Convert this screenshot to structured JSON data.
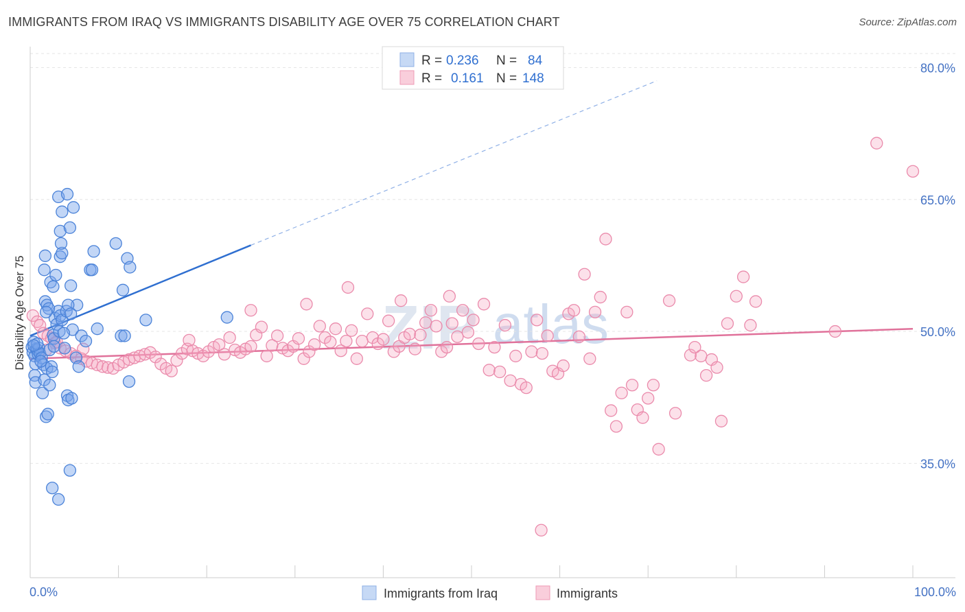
{
  "title": "IMMIGRANTS FROM IRAQ VS IMMIGRANTS DISABILITY AGE OVER 75 CORRELATION CHART",
  "source": "Source: ZipAtlas.com",
  "watermark": {
    "part1": "ZIP",
    "part2": "atlas"
  },
  "legend": {
    "r_label": "R =",
    "n_label": "N =",
    "rows": [
      {
        "r": "0.236",
        "n": "84"
      },
      {
        "r": "0.161",
        "n": "148"
      }
    ]
  },
  "bottom_legend": [
    "Immigrants from Iraq",
    "Immigrants"
  ],
  "chart_data": {
    "type": "scatter",
    "title": "IMMIGRANTS FROM IRAQ VS IMMIGRANTS DISABILITY AGE OVER 75 CORRELATION CHART",
    "xlabel": "",
    "ylabel": "Disability Age Over 75",
    "xlim": [
      0,
      100
    ],
    "ylim": [
      22,
      83
    ],
    "x_tick_labels": [
      "0.0%",
      "100.0%"
    ],
    "y_ticks": [
      35,
      50,
      65,
      80
    ],
    "y_tick_labels": [
      "35.0%",
      "50.0%",
      "65.0%",
      "80.0%"
    ],
    "grid": true,
    "legend_position": "top-center",
    "colors": {
      "iraq": "#5b8fe0",
      "immigrants": "#ee8fae",
      "iraq_line": "#2f6fd0",
      "immigrants_line": "#e0719a"
    },
    "series": [
      {
        "name": "Immigrants from Iraq",
        "r": 0.236,
        "n": 84,
        "trend": {
          "x": [
            0,
            25
          ],
          "y": [
            49.5,
            59.8
          ],
          "dashed_to": [
            71,
            78.5
          ]
        },
        "points": [
          [
            0.2,
            48.2
          ],
          [
            0.3,
            47.6
          ],
          [
            0.4,
            48.8
          ],
          [
            0.5,
            47.2
          ],
          [
            0.6,
            46.3
          ],
          [
            0.7,
            48.0
          ],
          [
            0.8,
            47.9
          ],
          [
            0.9,
            47.4
          ],
          [
            1.0,
            48.1
          ],
          [
            0.5,
            45.0
          ],
          [
            0.6,
            44.2
          ],
          [
            1.1,
            47.5
          ],
          [
            1.3,
            47.0
          ],
          [
            1.5,
            46.2
          ],
          [
            1.4,
            43.0
          ],
          [
            1.6,
            44.5
          ],
          [
            1.8,
            40.3
          ],
          [
            2.0,
            40.6
          ],
          [
            1.9,
            45.8
          ],
          [
            2.2,
            43.9
          ],
          [
            2.4,
            46.0
          ],
          [
            2.5,
            45.4
          ],
          [
            2.6,
            49.6
          ],
          [
            2.7,
            49.2
          ],
          [
            2.8,
            51.5
          ],
          [
            3.0,
            50.8
          ],
          [
            3.2,
            52.3
          ],
          [
            3.4,
            51.8
          ],
          [
            3.6,
            51.3
          ],
          [
            3.3,
            50.0
          ],
          [
            1.7,
            53.4
          ],
          [
            1.9,
            53.0
          ],
          [
            2.1,
            52.6
          ],
          [
            1.8,
            52.2
          ],
          [
            2.3,
            55.6
          ],
          [
            2.6,
            55.1
          ],
          [
            2.9,
            56.4
          ],
          [
            1.6,
            57.0
          ],
          [
            1.7,
            58.6
          ],
          [
            3.4,
            58.5
          ],
          [
            3.6,
            58.9
          ],
          [
            3.5,
            60.0
          ],
          [
            3.4,
            61.4
          ],
          [
            3.6,
            63.6
          ],
          [
            3.2,
            65.3
          ],
          [
            4.2,
            65.6
          ],
          [
            4.9,
            64.1
          ],
          [
            4.5,
            61.8
          ],
          [
            4.6,
            55.2
          ],
          [
            5.3,
            53.0
          ],
          [
            4.1,
            52.3
          ],
          [
            4.3,
            53.0
          ],
          [
            4.6,
            52.0
          ],
          [
            4.8,
            50.2
          ],
          [
            5.8,
            49.5
          ],
          [
            5.2,
            47.0
          ],
          [
            5.5,
            46.0
          ],
          [
            4.2,
            42.7
          ],
          [
            4.3,
            42.2
          ],
          [
            4.7,
            42.4
          ],
          [
            4.5,
            34.2
          ],
          [
            2.5,
            32.2
          ],
          [
            3.2,
            30.9
          ],
          [
            6.8,
            57.0
          ],
          [
            7.0,
            57.0
          ],
          [
            7.2,
            59.1
          ],
          [
            9.7,
            60.0
          ],
          [
            11.0,
            58.3
          ],
          [
            11.3,
            57.3
          ],
          [
            10.5,
            54.7
          ],
          [
            10.3,
            49.5
          ],
          [
            10.7,
            49.5
          ],
          [
            11.2,
            44.3
          ],
          [
            13.1,
            51.3
          ],
          [
            22.3,
            51.6
          ],
          [
            3.8,
            49.8
          ],
          [
            2.2,
            47.9
          ],
          [
            1.2,
            46.6
          ],
          [
            0.8,
            48.6
          ],
          [
            0.4,
            48.4
          ],
          [
            6.3,
            48.9
          ],
          [
            7.6,
            50.3
          ],
          [
            2.7,
            48.3
          ],
          [
            3.9,
            48.1
          ]
        ]
      },
      {
        "name": "Immigrants",
        "r": 0.161,
        "n": 148,
        "trend": {
          "x": [
            0,
            100
          ],
          "y": [
            46.9,
            50.3
          ]
        },
        "points": [
          [
            0.3,
            51.8
          ],
          [
            0.8,
            51.1
          ],
          [
            1.1,
            50.7
          ],
          [
            1.5,
            49.8
          ],
          [
            2.0,
            49.5
          ],
          [
            2.4,
            49.2
          ],
          [
            2.8,
            48.7
          ],
          [
            3.4,
            48.1
          ],
          [
            4.0,
            47.8
          ],
          [
            4.6,
            47.5
          ],
          [
            5.2,
            47.2
          ],
          [
            5.8,
            46.9
          ],
          [
            6.4,
            46.6
          ],
          [
            7.0,
            46.4
          ],
          [
            7.6,
            46.2
          ],
          [
            8.2,
            46.0
          ],
          [
            8.8,
            45.9
          ],
          [
            9.4,
            45.8
          ],
          [
            10.0,
            46.2
          ],
          [
            10.6,
            46.5
          ],
          [
            11.2,
            46.8
          ],
          [
            11.8,
            47.0
          ],
          [
            12.4,
            47.2
          ],
          [
            13.0,
            47.4
          ],
          [
            13.6,
            47.6
          ],
          [
            14.2,
            47.1
          ],
          [
            14.8,
            46.3
          ],
          [
            15.4,
            45.8
          ],
          [
            16.0,
            45.5
          ],
          [
            16.6,
            46.7
          ],
          [
            17.2,
            47.5
          ],
          [
            17.8,
            48.0
          ],
          [
            18.4,
            47.8
          ],
          [
            19.0,
            47.5
          ],
          [
            19.6,
            47.2
          ],
          [
            20.2,
            47.7
          ],
          [
            20.8,
            48.2
          ],
          [
            21.4,
            48.5
          ],
          [
            22.0,
            47.4
          ],
          [
            22.6,
            49.3
          ],
          [
            23.2,
            47.9
          ],
          [
            23.8,
            47.6
          ],
          [
            24.4,
            48.0
          ],
          [
            25.0,
            48.3
          ],
          [
            25.6,
            49.6
          ],
          [
            26.2,
            50.5
          ],
          [
            26.8,
            47.2
          ],
          [
            27.4,
            48.4
          ],
          [
            28.0,
            49.5
          ],
          [
            28.6,
            48.1
          ],
          [
            29.2,
            47.8
          ],
          [
            29.8,
            48.3
          ],
          [
            30.4,
            49.2
          ],
          [
            31.0,
            46.9
          ],
          [
            31.6,
            47.7
          ],
          [
            32.2,
            48.5
          ],
          [
            32.8,
            50.6
          ],
          [
            33.4,
            49.3
          ],
          [
            34.0,
            48.8
          ],
          [
            34.6,
            50.3
          ],
          [
            35.2,
            47.8
          ],
          [
            35.8,
            48.9
          ],
          [
            36.4,
            50.1
          ],
          [
            37.0,
            46.9
          ],
          [
            37.6,
            48.9
          ],
          [
            38.2,
            52.0
          ],
          [
            38.8,
            49.3
          ],
          [
            39.4,
            48.6
          ],
          [
            40.0,
            49.1
          ],
          [
            40.6,
            51.2
          ],
          [
            41.2,
            47.7
          ],
          [
            41.8,
            48.3
          ],
          [
            42.4,
            49.3
          ],
          [
            43.0,
            49.7
          ],
          [
            43.6,
            48.0
          ],
          [
            44.2,
            49.6
          ],
          [
            44.8,
            51.0
          ],
          [
            45.4,
            52.4
          ],
          [
            46.0,
            50.6
          ],
          [
            46.6,
            47.7
          ],
          [
            47.2,
            48.2
          ],
          [
            47.8,
            50.9
          ],
          [
            48.4,
            49.4
          ],
          [
            49.0,
            52.4
          ],
          [
            49.6,
            49.9
          ],
          [
            50.2,
            51.3
          ],
          [
            50.8,
            48.6
          ],
          [
            51.4,
            53.1
          ],
          [
            52.0,
            45.6
          ],
          [
            52.6,
            48.2
          ],
          [
            53.2,
            45.4
          ],
          [
            53.8,
            50.7
          ],
          [
            54.4,
            44.4
          ],
          [
            55.0,
            47.2
          ],
          [
            55.6,
            44.0
          ],
          [
            56.2,
            43.6
          ],
          [
            56.8,
            47.7
          ],
          [
            57.4,
            51.3
          ],
          [
            58.0,
            47.5
          ],
          [
            58.6,
            49.5
          ],
          [
            59.2,
            45.5
          ],
          [
            59.8,
            45.2
          ],
          [
            60.4,
            46.1
          ],
          [
            61.0,
            52.0
          ],
          [
            61.6,
            52.4
          ],
          [
            62.2,
            49.4
          ],
          [
            62.8,
            56.5
          ],
          [
            63.4,
            46.9
          ],
          [
            64.0,
            52.2
          ],
          [
            64.6,
            53.9
          ],
          [
            65.2,
            60.5
          ],
          [
            65.8,
            41.0
          ],
          [
            66.4,
            39.2
          ],
          [
            67.0,
            43.0
          ],
          [
            67.6,
            52.2
          ],
          [
            68.2,
            43.9
          ],
          [
            68.8,
            41.1
          ],
          [
            69.4,
            40.2
          ],
          [
            70.0,
            42.4
          ],
          [
            70.6,
            43.9
          ],
          [
            71.2,
            36.6
          ],
          [
            72.4,
            53.5
          ],
          [
            73.1,
            40.7
          ],
          [
            74.8,
            47.3
          ],
          [
            75.3,
            48.2
          ],
          [
            76.0,
            47.2
          ],
          [
            76.6,
            45.0
          ],
          [
            77.2,
            46.8
          ],
          [
            77.8,
            45.9
          ],
          [
            78.3,
            39.8
          ],
          [
            79.0,
            50.9
          ],
          [
            80.0,
            54.0
          ],
          [
            80.8,
            56.2
          ],
          [
            81.6,
            50.7
          ],
          [
            82.2,
            53.4
          ],
          [
            91.2,
            50.0
          ],
          [
            95.9,
            71.4
          ],
          [
            100.0,
            68.2
          ],
          [
            57.9,
            27.4
          ],
          [
            36.0,
            55.0
          ],
          [
            31.3,
            53.1
          ],
          [
            42.0,
            53.5
          ],
          [
            47.5,
            54.0
          ],
          [
            25.0,
            52.4
          ],
          [
            18.0,
            49.0
          ],
          [
            6.0,
            48.0
          ],
          [
            3.0,
            48.8
          ],
          [
            1.8,
            47.9
          ]
        ]
      }
    ]
  }
}
